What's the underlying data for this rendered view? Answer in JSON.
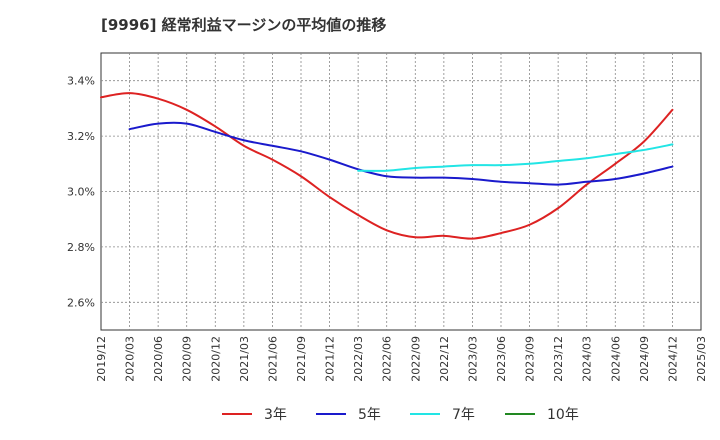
{
  "chart_data": {
    "type": "line",
    "title": "[9996]  経常利益マージンの平均値の推移",
    "xlabel": "",
    "ylabel": "",
    "x_ticks": [
      "2019/12",
      "2020/03",
      "2020/06",
      "2020/09",
      "2020/12",
      "2021/03",
      "2021/06",
      "2021/09",
      "2021/12",
      "2022/03",
      "2022/06",
      "2022/09",
      "2022/12",
      "2023/03",
      "2023/06",
      "2023/09",
      "2023/12",
      "2024/03",
      "2024/06",
      "2024/09",
      "2024/12",
      "2025/03"
    ],
    "y_ticks": [
      "2.6%",
      "2.8%",
      "3.0%",
      "3.2%",
      "3.4%"
    ],
    "y_tick_values": [
      2.6,
      2.8,
      3.0,
      3.2,
      3.4
    ],
    "ylim": [
      2.5,
      3.5
    ],
    "grid": true,
    "legend_position": "bottom",
    "series": [
      {
        "name": "3年",
        "color": "#dd2222",
        "points": [
          [
            "2019/12",
            3.34
          ],
          [
            "2020/03",
            3.355
          ],
          [
            "2020/06",
            3.335
          ],
          [
            "2020/09",
            3.295
          ],
          [
            "2020/12",
            3.235
          ],
          [
            "2021/03",
            3.165
          ],
          [
            "2021/06",
            3.115
          ],
          [
            "2021/09",
            3.055
          ],
          [
            "2021/12",
            2.98
          ],
          [
            "2022/03",
            2.915
          ],
          [
            "2022/06",
            2.86
          ],
          [
            "2022/09",
            2.835
          ],
          [
            "2022/12",
            2.84
          ],
          [
            "2023/03",
            2.83
          ],
          [
            "2023/06",
            2.85
          ],
          [
            "2023/09",
            2.88
          ],
          [
            "2023/12",
            2.94
          ],
          [
            "2024/03",
            3.025
          ],
          [
            "2024/06",
            3.1
          ],
          [
            "2024/09",
            3.18
          ],
          [
            "2024/12",
            3.295
          ]
        ]
      },
      {
        "name": "5年",
        "color": "#1a1acc",
        "points": [
          [
            "2020/03",
            3.225
          ],
          [
            "2020/06",
            3.245
          ],
          [
            "2020/09",
            3.245
          ],
          [
            "2020/12",
            3.215
          ],
          [
            "2021/03",
            3.185
          ],
          [
            "2021/06",
            3.165
          ],
          [
            "2021/09",
            3.145
          ],
          [
            "2021/12",
            3.115
          ],
          [
            "2022/03",
            3.08
          ],
          [
            "2022/06",
            3.055
          ],
          [
            "2022/09",
            3.05
          ],
          [
            "2022/12",
            3.05
          ],
          [
            "2023/03",
            3.045
          ],
          [
            "2023/06",
            3.035
          ],
          [
            "2023/09",
            3.03
          ],
          [
            "2023/12",
            3.025
          ],
          [
            "2024/03",
            3.035
          ],
          [
            "2024/06",
            3.045
          ],
          [
            "2024/09",
            3.065
          ],
          [
            "2024/12",
            3.09
          ]
        ]
      },
      {
        "name": "7年",
        "color": "#22e5e5",
        "points": [
          [
            "2022/03",
            3.075
          ],
          [
            "2022/06",
            3.075
          ],
          [
            "2022/09",
            3.085
          ],
          [
            "2022/12",
            3.09
          ],
          [
            "2023/03",
            3.095
          ],
          [
            "2023/06",
            3.095
          ],
          [
            "2023/09",
            3.1
          ],
          [
            "2023/12",
            3.11
          ],
          [
            "2024/03",
            3.12
          ],
          [
            "2024/06",
            3.135
          ],
          [
            "2024/09",
            3.15
          ],
          [
            "2024/12",
            3.17
          ]
        ]
      },
      {
        "name": "10年",
        "color": "#228822",
        "points": []
      }
    ]
  }
}
